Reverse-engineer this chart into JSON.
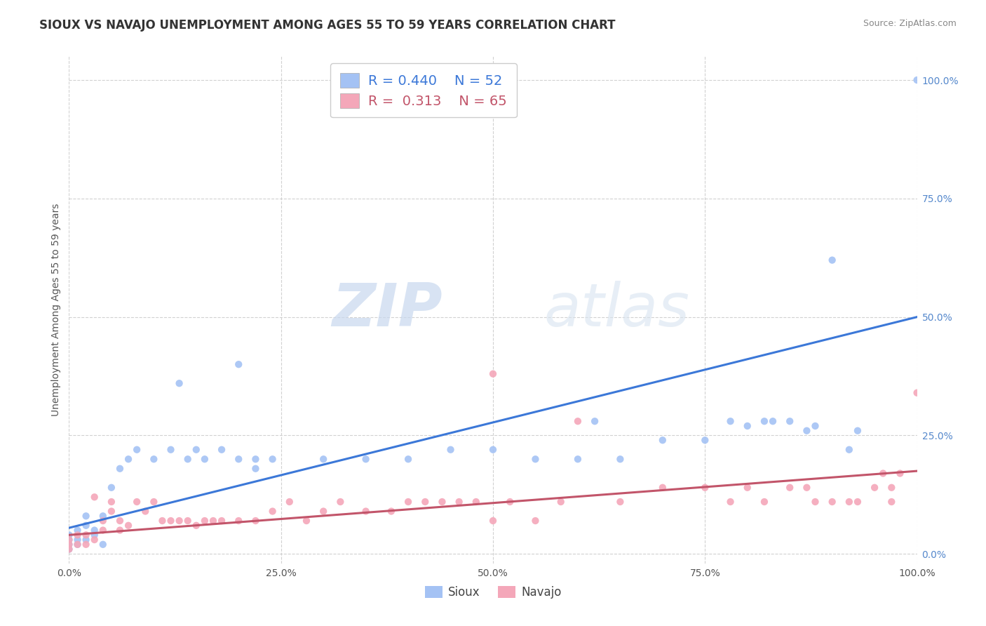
{
  "title": "SIOUX VS NAVAJO UNEMPLOYMENT AMONG AGES 55 TO 59 YEARS CORRELATION CHART",
  "source": "Source: ZipAtlas.com",
  "ylabel": "Unemployment Among Ages 55 to 59 years",
  "sioux_R": 0.44,
  "sioux_N": 52,
  "navajo_R": 0.313,
  "navajo_N": 65,
  "sioux_color": "#a4c2f4",
  "navajo_color": "#f4a7b9",
  "sioux_line_color": "#3c78d8",
  "navajo_line_color": "#c2556a",
  "background_color": "#ffffff",
  "watermark_zip": "ZIP",
  "watermark_atlas": "atlas",
  "xlim": [
    0,
    1
  ],
  "ylim": [
    -0.02,
    1.05
  ],
  "xticks": [
    0.0,
    0.25,
    0.5,
    0.75,
    1.0
  ],
  "xticklabels": [
    "0.0%",
    "25.0%",
    "50.0%",
    "75.0%",
    "100.0%"
  ],
  "yticks": [
    0.0,
    0.25,
    0.5,
    0.75,
    1.0
  ],
  "yticklabels": [
    "0.0%",
    "25.0%",
    "50.0%",
    "75.0%",
    "100.0%"
  ],
  "sioux_scatter": [
    [
      0.0,
      0.01
    ],
    [
      0.0,
      0.02
    ],
    [
      0.0,
      0.03
    ],
    [
      0.0,
      0.04
    ],
    [
      0.01,
      0.02
    ],
    [
      0.01,
      0.03
    ],
    [
      0.01,
      0.05
    ],
    [
      0.02,
      0.03
    ],
    [
      0.02,
      0.06
    ],
    [
      0.02,
      0.08
    ],
    [
      0.03,
      0.04
    ],
    [
      0.03,
      0.05
    ],
    [
      0.04,
      0.02
    ],
    [
      0.04,
      0.08
    ],
    [
      0.05,
      0.14
    ],
    [
      0.06,
      0.18
    ],
    [
      0.07,
      0.2
    ],
    [
      0.08,
      0.22
    ],
    [
      0.1,
      0.2
    ],
    [
      0.12,
      0.22
    ],
    [
      0.13,
      0.36
    ],
    [
      0.14,
      0.2
    ],
    [
      0.15,
      0.22
    ],
    [
      0.16,
      0.2
    ],
    [
      0.18,
      0.22
    ],
    [
      0.2,
      0.4
    ],
    [
      0.2,
      0.2
    ],
    [
      0.22,
      0.18
    ],
    [
      0.22,
      0.2
    ],
    [
      0.24,
      0.2
    ],
    [
      0.3,
      0.2
    ],
    [
      0.35,
      0.2
    ],
    [
      0.4,
      0.2
    ],
    [
      0.45,
      0.22
    ],
    [
      0.5,
      0.22
    ],
    [
      0.55,
      0.2
    ],
    [
      0.6,
      0.2
    ],
    [
      0.62,
      0.28
    ],
    [
      0.65,
      0.2
    ],
    [
      0.7,
      0.24
    ],
    [
      0.75,
      0.24
    ],
    [
      0.78,
      0.28
    ],
    [
      0.8,
      0.27
    ],
    [
      0.82,
      0.28
    ],
    [
      0.83,
      0.28
    ],
    [
      0.85,
      0.28
    ],
    [
      0.87,
      0.26
    ],
    [
      0.88,
      0.27
    ],
    [
      0.9,
      0.62
    ],
    [
      0.92,
      0.22
    ],
    [
      0.93,
      0.26
    ],
    [
      1.0,
      1.0
    ]
  ],
  "navajo_scatter": [
    [
      0.0,
      0.01
    ],
    [
      0.0,
      0.02
    ],
    [
      0.0,
      0.03
    ],
    [
      0.01,
      0.02
    ],
    [
      0.01,
      0.04
    ],
    [
      0.02,
      0.02
    ],
    [
      0.02,
      0.04
    ],
    [
      0.03,
      0.03
    ],
    [
      0.03,
      0.12
    ],
    [
      0.04,
      0.07
    ],
    [
      0.04,
      0.05
    ],
    [
      0.05,
      0.09
    ],
    [
      0.05,
      0.11
    ],
    [
      0.06,
      0.07
    ],
    [
      0.06,
      0.05
    ],
    [
      0.07,
      0.06
    ],
    [
      0.08,
      0.11
    ],
    [
      0.09,
      0.09
    ],
    [
      0.1,
      0.11
    ],
    [
      0.11,
      0.07
    ],
    [
      0.12,
      0.07
    ],
    [
      0.13,
      0.07
    ],
    [
      0.14,
      0.07
    ],
    [
      0.15,
      0.06
    ],
    [
      0.16,
      0.07
    ],
    [
      0.17,
      0.07
    ],
    [
      0.18,
      0.07
    ],
    [
      0.2,
      0.07
    ],
    [
      0.22,
      0.07
    ],
    [
      0.24,
      0.09
    ],
    [
      0.26,
      0.11
    ],
    [
      0.28,
      0.07
    ],
    [
      0.3,
      0.09
    ],
    [
      0.32,
      0.11
    ],
    [
      0.35,
      0.09
    ],
    [
      0.38,
      0.09
    ],
    [
      0.4,
      0.11
    ],
    [
      0.42,
      0.11
    ],
    [
      0.44,
      0.11
    ],
    [
      0.46,
      0.11
    ],
    [
      0.48,
      0.11
    ],
    [
      0.5,
      0.07
    ],
    [
      0.5,
      0.38
    ],
    [
      0.52,
      0.11
    ],
    [
      0.55,
      0.07
    ],
    [
      0.58,
      0.11
    ],
    [
      0.6,
      0.28
    ],
    [
      0.65,
      0.11
    ],
    [
      0.7,
      0.14
    ],
    [
      0.75,
      0.14
    ],
    [
      0.78,
      0.11
    ],
    [
      0.8,
      0.14
    ],
    [
      0.82,
      0.11
    ],
    [
      0.85,
      0.14
    ],
    [
      0.87,
      0.14
    ],
    [
      0.88,
      0.11
    ],
    [
      0.9,
      0.11
    ],
    [
      0.92,
      0.11
    ],
    [
      0.93,
      0.11
    ],
    [
      0.95,
      0.14
    ],
    [
      0.96,
      0.17
    ],
    [
      0.97,
      0.14
    ],
    [
      0.97,
      0.11
    ],
    [
      0.98,
      0.17
    ],
    [
      1.0,
      0.34
    ]
  ],
  "sioux_trendline": [
    [
      0.0,
      0.055
    ],
    [
      1.0,
      0.5
    ]
  ],
  "navajo_trendline": [
    [
      0.0,
      0.04
    ],
    [
      1.0,
      0.175
    ]
  ],
  "title_fontsize": 12,
  "axis_fontsize": 10,
  "tick_fontsize": 10
}
